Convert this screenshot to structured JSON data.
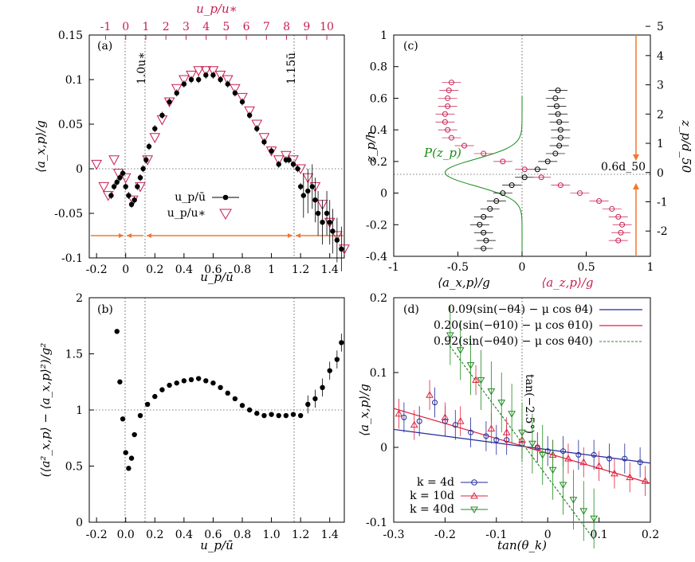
{
  "colors": {
    "black": "#000000",
    "pink": "#c81e50",
    "orange": "#f07830",
    "green": "#1a8a1a",
    "blue": "#1f2a9a",
    "red": "#e0203c",
    "dark_green": "#2a8a2a"
  },
  "chart_data": [
    {
      "panel": "(a)",
      "type": "scatter",
      "xlabel": "u_p/ū",
      "ylabel": "⟨a_x,p⟩/g",
      "top_xlabel": "u_p/u_*",
      "xlim": [
        -0.25,
        1.5
      ],
      "ylim": [
        -0.1,
        0.15
      ],
      "xticks": [
        "-0.2",
        "0",
        "0.2",
        "0.4",
        "0.6",
        "0.8",
        "1",
        "1.2",
        "1.4"
      ],
      "yticks": [
        "-0.1",
        "-0.05",
        "0",
        "0.05",
        "0.1",
        "0.15"
      ],
      "top_ticks": [
        "-1",
        "0",
        "1",
        "2",
        "3",
        "4",
        "5",
        "6",
        "7",
        "8",
        "9",
        "10"
      ],
      "annotations": [
        "1.0u_*",
        "1.15ū"
      ],
      "legend": [
        "u_p/ū",
        "u_p/u_*"
      ],
      "series": [
        {
          "name": "u_p/ū",
          "x": [
            -0.1,
            -0.08,
            -0.06,
            -0.04,
            -0.02,
            0.0,
            0.02,
            0.04,
            0.06,
            0.08,
            0.1,
            0.12,
            0.14,
            0.16,
            0.2,
            0.25,
            0.3,
            0.35,
            0.4,
            0.45,
            0.5,
            0.55,
            0.6,
            0.65,
            0.7,
            0.75,
            0.8,
            0.85,
            0.9,
            0.95,
            1.0,
            1.05,
            1.1,
            1.12,
            1.15,
            1.18,
            1.2,
            1.22,
            1.25,
            1.28,
            1.3,
            1.32,
            1.35,
            1.38,
            1.4,
            1.42,
            1.45,
            1.48
          ],
          "y": [
            -0.03,
            -0.02,
            -0.015,
            -0.01,
            -0.005,
            -0.02,
            -0.03,
            -0.04,
            -0.035,
            -0.02,
            -0.01,
            0.0,
            0.01,
            0.025,
            0.045,
            0.06,
            0.075,
            0.085,
            0.095,
            0.1,
            0.1,
            0.105,
            0.105,
            0.1,
            0.095,
            0.085,
            0.075,
            0.06,
            0.045,
            0.03,
            0.02,
            0.005,
            0.01,
            0.01,
            0.005,
            0.0,
            -0.02,
            -0.03,
            -0.025,
            -0.02,
            -0.035,
            -0.05,
            -0.06,
            -0.05,
            -0.06,
            -0.07,
            -0.08,
            -0.09
          ]
        },
        {
          "name": "u_p/u_*",
          "x": [
            -0.2,
            -0.15,
            -0.12,
            -0.08,
            -0.05,
            0.0,
            0.05,
            0.1,
            0.15,
            0.2,
            0.25,
            0.3,
            0.35,
            0.4,
            0.45,
            0.5,
            0.55,
            0.6,
            0.65,
            0.7,
            0.75,
            0.8,
            0.85,
            0.9,
            0.95,
            1.0,
            1.05,
            1.1,
            1.15,
            1.2,
            1.25,
            1.3,
            1.35,
            1.4,
            1.45,
            1.5
          ],
          "y": [
            0.005,
            -0.02,
            -0.03,
            0.01,
            -0.005,
            -0.01,
            -0.035,
            -0.02,
            0.01,
            0.035,
            0.055,
            0.075,
            0.09,
            0.1,
            0.105,
            0.11,
            0.11,
            0.11,
            0.105,
            0.1,
            0.09,
            0.08,
            0.065,
            0.05,
            0.035,
            0.02,
            0.01,
            0.015,
            0.01,
            0.0,
            -0.01,
            -0.02,
            -0.04,
            -0.06,
            -0.075,
            -0.09
          ]
        }
      ]
    },
    {
      "panel": "(b)",
      "type": "scatter",
      "xlabel": "u_p/ū",
      "ylabel": "(⟨a²_x,p⟩ − ⟨a_x,p⟩²)/g²",
      "xlim": [
        -0.25,
        1.5
      ],
      "ylim": [
        0,
        2
      ],
      "xticks": [
        "-0.2",
        "0.0",
        "0.2",
        "0.4",
        "0.6",
        "0.8",
        "1.0",
        "1.2",
        "1.4"
      ],
      "yticks": [
        "0",
        "0.5",
        "1",
        "1.5",
        "2"
      ],
      "series": [
        {
          "name": "variance",
          "x": [
            -0.06,
            -0.04,
            -0.02,
            0.0,
            0.02,
            0.04,
            0.06,
            0.1,
            0.15,
            0.2,
            0.25,
            0.3,
            0.35,
            0.4,
            0.45,
            0.5,
            0.55,
            0.6,
            0.65,
            0.7,
            0.75,
            0.8,
            0.85,
            0.9,
            0.95,
            1.0,
            1.05,
            1.1,
            1.15,
            1.2,
            1.25,
            1.3,
            1.35,
            1.4,
            1.45,
            1.48
          ],
          "y": [
            1.7,
            1.25,
            0.92,
            0.62,
            0.48,
            0.57,
            0.78,
            0.95,
            1.05,
            1.12,
            1.18,
            1.22,
            1.24,
            1.26,
            1.27,
            1.28,
            1.26,
            1.24,
            1.2,
            1.15,
            1.1,
            1.04,
            1.0,
            0.97,
            0.95,
            0.96,
            0.95,
            0.95,
            0.96,
            0.95,
            1.05,
            1.1,
            1.2,
            1.35,
            1.45,
            1.6
          ]
        }
      ]
    },
    {
      "panel": "(c)",
      "type": "scatter",
      "xlabel": "⟨a_x,p⟩/g",
      "xlabel2": "⟨a_z,p⟩/g",
      "ylabel": "z_p/h",
      "ylabel_right": "z_p/d_50",
      "xlim": [
        -1,
        1
      ],
      "ylim": [
        -0.4,
        1
      ],
      "xticks": [
        "-1",
        "-0.5",
        "0",
        "0.5",
        "1"
      ],
      "yticks": [
        "-0.4",
        "-0.2",
        "0",
        "0.2",
        "0.4",
        "0.6",
        "0.8",
        "1"
      ],
      "yticks_right": [
        "-2",
        "-1",
        "0",
        "1",
        "2",
        "3",
        "4",
        "5"
      ],
      "annotations": [
        "P(z_p)",
        "0.6d_50"
      ],
      "series": [
        {
          "name": "a_x",
          "z": [
            -0.35,
            -0.3,
            -0.25,
            -0.2,
            -0.15,
            -0.1,
            -0.05,
            0.0,
            0.05,
            0.1,
            0.15,
            0.2,
            0.25,
            0.3,
            0.35,
            0.4,
            0.45,
            0.5,
            0.55,
            0.6,
            0.65
          ],
          "x": [
            -0.3,
            -0.28,
            -0.3,
            -0.33,
            -0.3,
            -0.25,
            -0.2,
            -0.15,
            -0.08,
            0.02,
            0.12,
            0.2,
            0.26,
            0.29,
            0.3,
            0.3,
            0.29,
            0.28,
            0.27,
            0.26,
            0.28
          ]
        },
        {
          "name": "a_z",
          "z": [
            -0.3,
            -0.25,
            -0.2,
            -0.15,
            -0.1,
            -0.05,
            0.0,
            0.05,
            0.1,
            0.15,
            0.2,
            0.25,
            0.3,
            0.35,
            0.4,
            0.45,
            0.5,
            0.55,
            0.6,
            0.65,
            0.7
          ],
          "x": [
            0.75,
            0.77,
            0.78,
            0.75,
            0.7,
            0.6,
            0.45,
            0.3,
            0.15,
            0.02,
            -0.15,
            -0.3,
            -0.45,
            -0.55,
            -0.58,
            -0.6,
            -0.6,
            -0.58,
            -0.58,
            -0.57,
            -0.55
          ]
        }
      ]
    },
    {
      "panel": "(d)",
      "type": "scatter",
      "xlabel": "tan(θ_k)",
      "ylabel": "⟨a_x,p⟩/g",
      "xlim": [
        -0.3,
        0.2
      ],
      "ylim": [
        -0.1,
        0.2
      ],
      "xticks": [
        "-0.3",
        "-0.2",
        "-0.1",
        "0",
        "0.1",
        "0.2"
      ],
      "yticks": [
        "-0.1",
        "0",
        "0.1",
        "0.2"
      ],
      "annotations": [
        "tan(−2.5°)"
      ],
      "legend": [
        "0.09(sin(−θ4) − μ cos θ4)",
        "0.20(sin(−θ10) − μ cos θ10)",
        "0.92(sin(−θ40) − μ cos θ40)",
        "k = 4d",
        "k = 10d",
        "k = 40d"
      ],
      "series": [
        {
          "name": "k = 4d",
          "x": [
            -0.28,
            -0.25,
            -0.22,
            -0.2,
            -0.18,
            -0.15,
            -0.12,
            -0.1,
            -0.08,
            -0.05,
            -0.02,
            0.0,
            0.03,
            0.06,
            0.09,
            0.12,
            0.15,
            0.18
          ],
          "y": [
            0.04,
            0.035,
            0.06,
            0.035,
            0.03,
            0.02,
            0.015,
            0.01,
            0.01,
            0.005,
            0.0,
            -0.005,
            -0.005,
            -0.01,
            -0.01,
            -0.015,
            -0.015,
            -0.02
          ]
        },
        {
          "name": "k = 10d",
          "x": [
            -0.29,
            -0.26,
            -0.23,
            -0.2,
            -0.17,
            -0.14,
            -0.11,
            -0.08,
            -0.05,
            -0.02,
            0.01,
            0.04,
            0.07,
            0.1,
            0.13,
            0.16,
            0.19
          ],
          "y": [
            0.045,
            0.03,
            0.07,
            0.04,
            0.035,
            0.09,
            0.025,
            0.02,
            0.01,
            0.0,
            -0.01,
            -0.015,
            -0.02,
            -0.025,
            -0.035,
            -0.04,
            -0.045
          ]
        },
        {
          "name": "k = 40d",
          "x": [
            -0.19,
            -0.17,
            -0.15,
            -0.13,
            -0.11,
            -0.09,
            -0.07,
            -0.05,
            -0.03,
            -0.01,
            0.01,
            0.03,
            0.05,
            0.07,
            0.09
          ],
          "y": [
            0.15,
            0.13,
            0.11,
            0.09,
            0.075,
            0.06,
            0.045,
            0.02,
            0.005,
            -0.01,
            -0.03,
            -0.05,
            -0.07,
            -0.085,
            -0.095
          ]
        }
      ],
      "fits": [
        {
          "name": "0.09(sin(−θ4) − μ cos θ4)",
          "slope": -0.09,
          "intercept": -0.003
        },
        {
          "name": "0.20(sin(−θ10) − μ cos θ10)",
          "slope": -0.2,
          "intercept": -0.008
        },
        {
          "name": "0.92(sin(−θ40) − μ cos θ40)",
          "slope": -0.92,
          "intercept": -0.04
        }
      ]
    }
  ]
}
